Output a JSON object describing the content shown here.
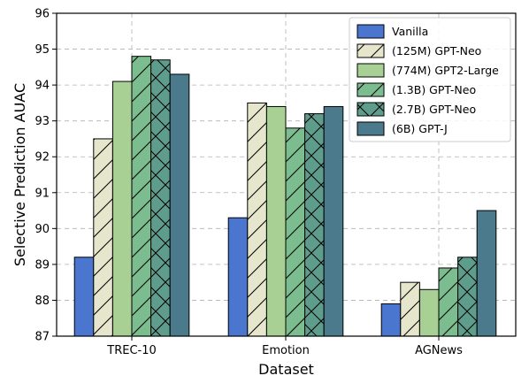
{
  "chart_data": {
    "type": "bar",
    "xlabel": "Dataset",
    "ylabel": "Selective Prediction AUAC",
    "categories": [
      "TREC-10",
      "Emotion",
      "AGNews"
    ],
    "ylim": [
      87,
      96
    ],
    "yticks": [
      87,
      88,
      89,
      90,
      91,
      92,
      93,
      94,
      95,
      96
    ],
    "grid": true,
    "legend_position": "top-right",
    "series": [
      {
        "name": "Vanilla",
        "values": [
          89.2,
          90.3,
          87.9
        ],
        "color": "#4a76cf",
        "hatch": "none"
      },
      {
        "name": "(125M) GPT-Neo",
        "values": [
          92.5,
          93.5,
          88.5
        ],
        "color": "#e6e6cc",
        "hatch": "diag"
      },
      {
        "name": "(774M) GPT2-Large",
        "values": [
          94.1,
          93.4,
          88.3
        ],
        "color": "#a8cf94",
        "hatch": "none"
      },
      {
        "name": "(1.3B) GPT-Neo",
        "values": [
          94.8,
          92.8,
          88.9
        ],
        "color": "#7bbd8e",
        "hatch": "diag"
      },
      {
        "name": "(2.7B) GPT-Neo",
        "values": [
          94.7,
          93.2,
          89.2
        ],
        "color": "#5e9d8c",
        "hatch": "cross"
      },
      {
        "name": "(6B) GPT-J",
        "values": [
          94.3,
          93.4,
          90.5
        ],
        "color": "#4b7a8c",
        "hatch": "none"
      }
    ]
  }
}
